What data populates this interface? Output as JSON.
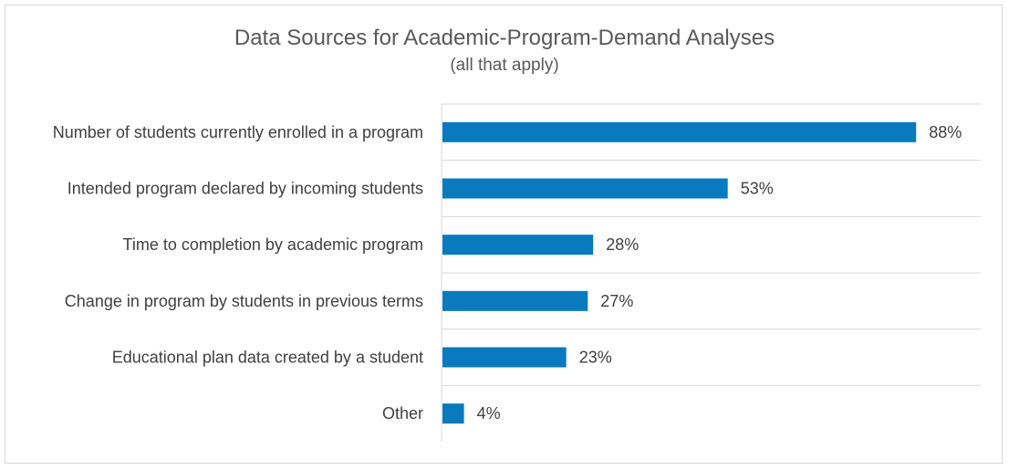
{
  "chart_data": {
    "type": "bar",
    "orientation": "horizontal",
    "title": "Data Sources for Academic-Program-Demand Analyses",
    "subtitle": "(all that apply)",
    "categories": [
      "Number of students currently enrolled in a program",
      "Intended program declared by incoming students",
      "Time to completion by academic program",
      "Change in program by students in previous terms",
      "Educational plan data created by a student",
      "Other"
    ],
    "values": [
      88,
      53,
      28,
      27,
      23,
      4
    ],
    "value_labels": [
      "88%",
      "53%",
      "28%",
      "27%",
      "23%",
      "4%"
    ],
    "xlim": [
      0,
      100
    ],
    "grid": "horizontal-separators",
    "legend": "none",
    "bar_color": "#0a7abf"
  }
}
